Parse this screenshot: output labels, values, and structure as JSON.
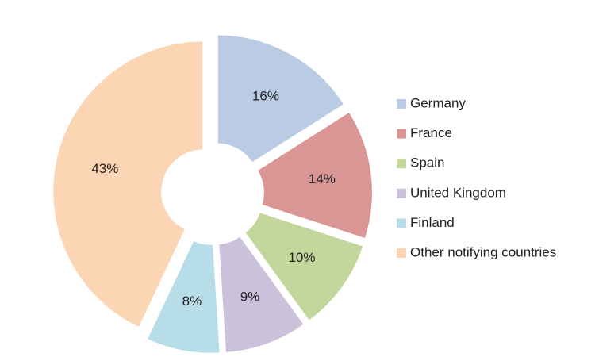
{
  "chart_data": {
    "type": "donut",
    "categories": [
      "Germany",
      "France",
      "Spain",
      "United Kingdom",
      "Finland",
      "Other notifying countries"
    ],
    "values": [
      16,
      14,
      10,
      9,
      8,
      43
    ],
    "value_labels": [
      "16%",
      "14%",
      "10%",
      "9%",
      "8%",
      "43%"
    ],
    "colors": [
      "#b9cce4",
      "#d99694",
      "#c3d69b",
      "#ccc1da",
      "#b7dee8",
      "#fcd5b5"
    ],
    "legend": "right"
  }
}
